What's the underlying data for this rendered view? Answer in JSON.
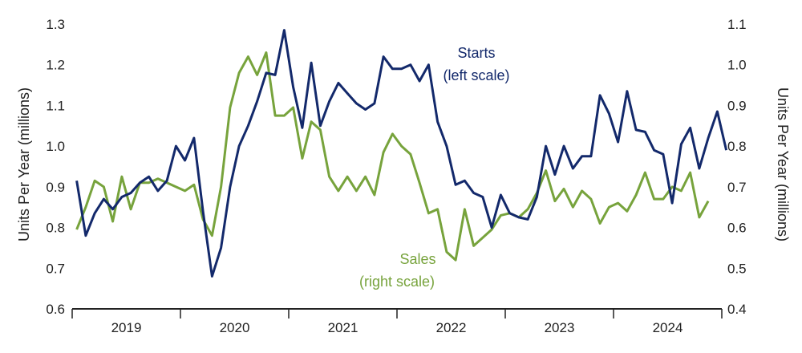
{
  "chart_data": {
    "type": "line",
    "x_start": "2019-01",
    "frequency": "monthly",
    "year_labels": [
      "2019",
      "2020",
      "2021",
      "2022",
      "2023",
      "2024"
    ],
    "left_axis": {
      "label": "Units Per Year (millions)",
      "ylim": [
        0.6,
        1.3
      ],
      "ticks": [
        "0.6",
        "0.7",
        "0.8",
        "0.9",
        "1.0",
        "1.1",
        "1.2",
        "1.3"
      ]
    },
    "right_axis": {
      "label": "Units Per Year (millions)",
      "ylim": [
        0.4,
        1.1
      ],
      "ticks": [
        "0.4",
        "0.5",
        "0.6",
        "0.7",
        "0.8",
        "0.9",
        "1.0",
        "1.1"
      ]
    },
    "series": [
      {
        "name": "Starts",
        "axis": "left",
        "color": "#13296b",
        "label_line1": "Starts",
        "label_line2": "(left scale)",
        "values": [
          0.915,
          0.78,
          0.835,
          0.87,
          0.845,
          0.875,
          0.885,
          0.91,
          0.925,
          0.89,
          0.915,
          1.0,
          0.965,
          1.02,
          0.84,
          0.68,
          0.75,
          0.9,
          1.0,
          1.05,
          1.11,
          1.18,
          1.175,
          1.285,
          1.145,
          1.045,
          1.205,
          1.05,
          1.11,
          1.155,
          1.13,
          1.105,
          1.09,
          1.105,
          1.22,
          1.19,
          1.19,
          1.2,
          1.16,
          1.2,
          1.06,
          1.0,
          0.905,
          0.915,
          0.885,
          0.875,
          0.8,
          0.88,
          0.835,
          0.825,
          0.82,
          0.875,
          1.0,
          0.93,
          1.0,
          0.945,
          0.975,
          0.975,
          1.125,
          1.08,
          1.01,
          1.135,
          1.04,
          1.035,
          0.99,
          0.98,
          0.86,
          1.005,
          1.045,
          0.945,
          1.02,
          1.085,
          0.99
        ]
      },
      {
        "name": "Sales",
        "axis": "right",
        "color": "#77a33c",
        "label_line1": "Sales",
        "label_line2": "(right scale)",
        "values": [
          0.595,
          0.65,
          0.715,
          0.7,
          0.615,
          0.725,
          0.645,
          0.71,
          0.71,
          0.72,
          0.71,
          0.7,
          0.69,
          0.705,
          0.62,
          0.58,
          0.7,
          0.895,
          0.98,
          1.02,
          0.975,
          1.03,
          0.875,
          0.875,
          0.895,
          0.77,
          0.86,
          0.84,
          0.725,
          0.69,
          0.725,
          0.69,
          0.725,
          0.68,
          0.785,
          0.83,
          0.8,
          0.78,
          0.71,
          0.635,
          0.645,
          0.54,
          0.52,
          0.645,
          0.555,
          0.575,
          0.595,
          0.63,
          0.635,
          0.625,
          0.645,
          0.685,
          0.74,
          0.665,
          0.695,
          0.65,
          0.69,
          0.67,
          0.61,
          0.65,
          0.66,
          0.64,
          0.68,
          0.735,
          0.67,
          0.67,
          0.7,
          0.69,
          0.735,
          0.625,
          0.665
        ]
      }
    ]
  }
}
